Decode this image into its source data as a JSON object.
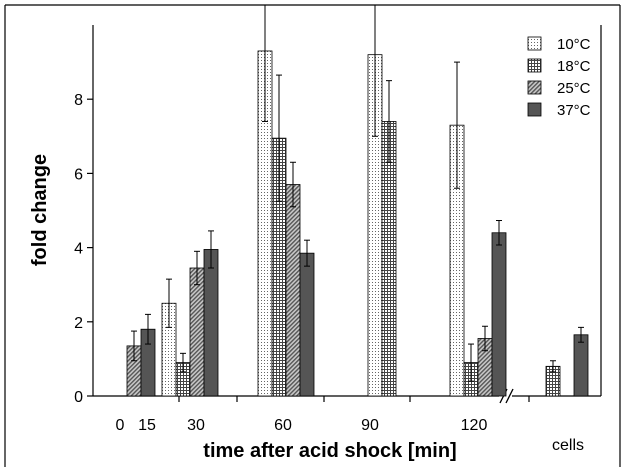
{
  "chart_data": {
    "type": "bar",
    "title": "",
    "xlabel": "time after acid shock [min]",
    "ylabel": "fold change",
    "ylim": [
      0,
      10
    ],
    "yticks": [
      "0",
      "2",
      "4",
      "6",
      "8"
    ],
    "x_tick_labels": [
      "0",
      "15",
      "30",
      "60",
      "90",
      "120"
    ],
    "extra_category_label": "cells",
    "axis_break_marker": "//",
    "legend_placement": "top-right",
    "grid": false,
    "categories": [
      "15",
      "30",
      "60",
      "90",
      "120",
      "cells"
    ],
    "series": [
      {
        "name": "10°C",
        "pattern": "dots",
        "values": [
          null,
          2.5,
          9.3,
          9.2,
          7.3,
          null
        ],
        "errors": [
          null,
          0.65,
          1.9,
          2.2,
          1.7,
          null
        ]
      },
      {
        "name": "18°C",
        "pattern": "grid",
        "values": [
          null,
          0.9,
          6.95,
          7.4,
          0.9,
          0.8
        ],
        "errors": [
          null,
          0.25,
          1.7,
          1.1,
          0.5,
          0.15
        ]
      },
      {
        "name": "25°C",
        "pattern": "hatch",
        "values": [
          1.35,
          3.45,
          5.7,
          null,
          1.55,
          null
        ],
        "errors": [
          0.4,
          0.45,
          0.6,
          null,
          0.33,
          null
        ]
      },
      {
        "name": "37°C",
        "pattern": "solid",
        "values": [
          1.8,
          3.95,
          3.85,
          null,
          4.4,
          1.65
        ],
        "errors": [
          0.4,
          0.5,
          0.35,
          null,
          0.33,
          0.2
        ]
      }
    ],
    "colors": {
      "solid": "#555555",
      "hatch": "#9a9a9a",
      "stroke": "#000000"
    }
  }
}
